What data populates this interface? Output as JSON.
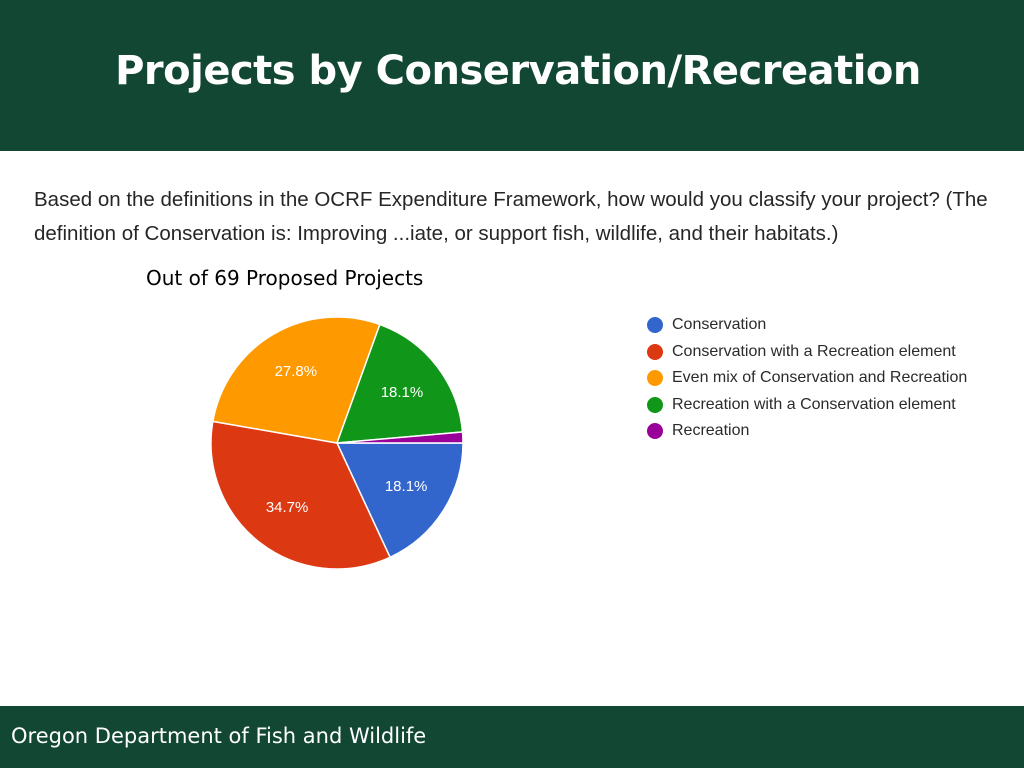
{
  "header": {
    "title": "Projects by Conservation/Recreation"
  },
  "question": {
    "text": "Based on the definitions in the OCRF Expenditure Framework, how would you classify your project? (The definition of Conservation is: Improving ...iate, or support fish, wildlife, and their habitats.)"
  },
  "footer": {
    "text": "Oregon Department of Fish and Wildlife"
  },
  "colors": {
    "header_bg": "#124734",
    "footer_bg": "#124734"
  },
  "chart_data": {
    "type": "pie",
    "title": "Out of 69 Proposed Projects",
    "legend_position": "right",
    "slices": [
      {
        "name": "Conservation",
        "value": 18.1,
        "label": "18.1%",
        "color": "#3366cc"
      },
      {
        "name": "Conservation with a Recreation element",
        "value": 34.7,
        "label": "34.7%",
        "color": "#dc3912"
      },
      {
        "name": "Even mix of Conservation and Recreation",
        "value": 27.8,
        "label": "27.8%",
        "color": "#ff9900"
      },
      {
        "name": "Recreation with a Conservation element",
        "value": 18.1,
        "label": "18.1%",
        "color": "#109618"
      },
      {
        "name": "Recreation",
        "value": 1.4,
        "label": "",
        "color": "#990099"
      }
    ]
  }
}
